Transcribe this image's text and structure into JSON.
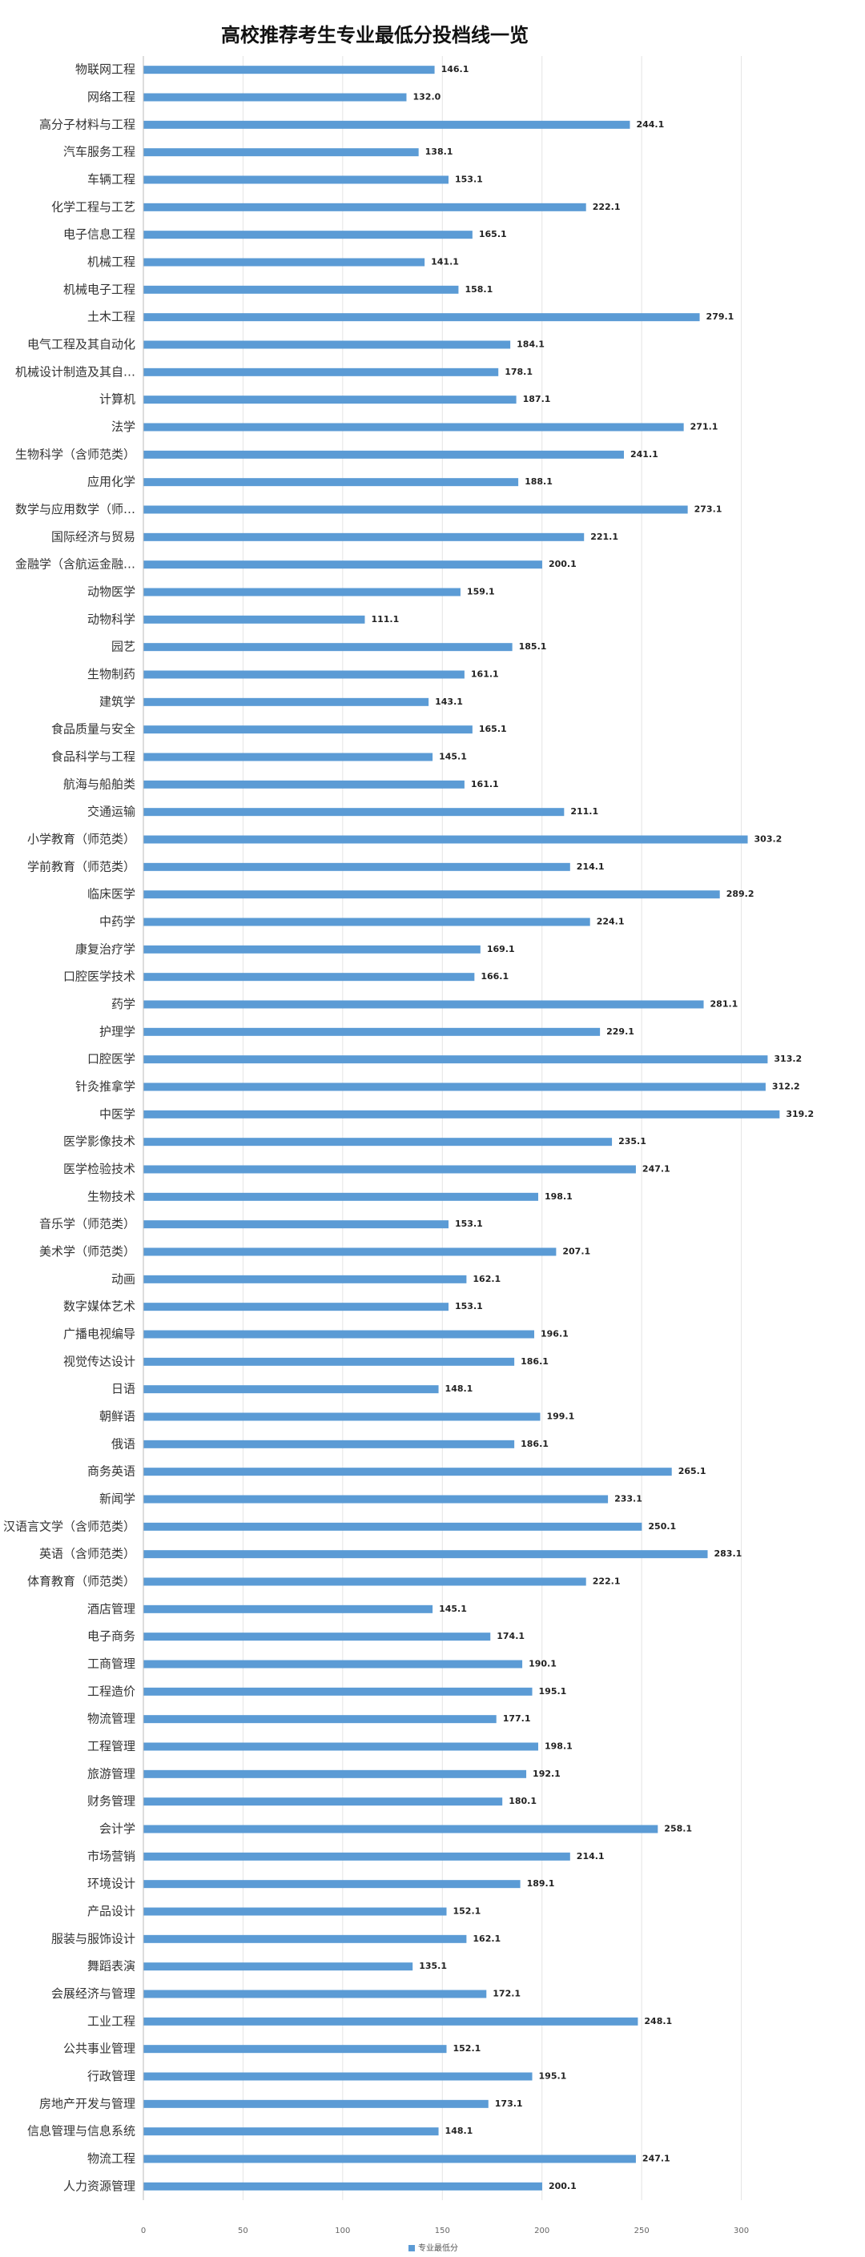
{
  "chart_data": {
    "type": "barh",
    "title": "高校推荐考生专业最低分投档线一览",
    "categories": [
      "物联网工程",
      "网络工程",
      "高分子材料与工程",
      "汽车服务工程",
      "车辆工程",
      "化学工程与工艺",
      "电子信息工程",
      "机械工程",
      "机械电子工程",
      "土木工程",
      "电气工程及其自动化",
      "机械设计制造及其自…",
      "计算机",
      "法学",
      "生物科学（含师范类）",
      "应用化学",
      "数学与应用数学（师…",
      "国际经济与贸易",
      "金融学（含航运金融…",
      "动物医学",
      "动物科学",
      "园艺",
      "生物制药",
      "建筑学",
      "食品质量与安全",
      "食品科学与工程",
      "航海与船舶类",
      "交通运输",
      "小学教育（师范类）",
      "学前教育（师范类）",
      "临床医学",
      "中药学",
      "康复治疗学",
      "口腔医学技术",
      "药学",
      "护理学",
      "口腔医学",
      "针灸推拿学",
      "中医学",
      "医学影像技术",
      "医学检验技术",
      "生物技术",
      "音乐学（师范类）",
      "美术学（师范类）",
      "动画",
      "数字媒体艺术",
      "广播电视编导",
      "视觉传达设计",
      "日语",
      "朝鲜语",
      "俄语",
      "商务英语",
      "新闻学",
      "汉语言文学（含师范类）",
      "英语（含师范类）",
      "体育教育（师范类）",
      "酒店管理",
      "电子商务",
      "工商管理",
      "工程造价",
      "物流管理",
      "工程管理",
      "旅游管理",
      "财务管理",
      "会计学",
      "市场营销",
      "环境设计",
      "产品设计",
      "服装与服饰设计",
      "舞蹈表演",
      "会展经济与管理",
      "工业工程",
      "公共事业管理",
      "行政管理",
      "房地产开发与管理",
      "信息管理与信息系统",
      "物流工程",
      "人力资源管理"
    ],
    "series": [
      {
        "name": "专业最低分",
        "color": "#5b9bd5",
        "values": [
          146.1,
          132.0,
          244.1,
          138.1,
          153.1,
          222.1,
          165.1,
          141.1,
          158.1,
          279.1,
          184.1,
          178.1,
          187.1,
          271.1,
          241.1,
          188.1,
          273.1,
          221.1,
          200.1,
          159.1,
          111.1,
          185.1,
          161.1,
          143.1,
          165.1,
          145.1,
          161.1,
          211.1,
          303.2,
          214.1,
          289.2,
          224.1,
          169.1,
          166.1,
          281.1,
          229.1,
          313.2,
          312.2,
          319.2,
          235.1,
          247.1,
          198.1,
          153.1,
          207.1,
          162.1,
          153.1,
          196.1,
          186.1,
          148.1,
          199.1,
          186.1,
          265.1,
          233.1,
          250.1,
          283.1,
          222.1,
          145.1,
          174.1,
          190.1,
          195.1,
          177.1,
          198.1,
          192.1,
          180.1,
          258.1,
          214.1,
          189.1,
          152.1,
          162.1,
          135.1,
          172.1,
          248.1,
          152.1,
          195.1,
          173.1,
          148.1,
          247.1,
          200.1
        ],
        "value_labels": [
          "146.1",
          "132.0",
          "244.1",
          "138.1",
          "153.1",
          "222.1",
          "165.1",
          "141.1",
          "158.1",
          "279.1",
          "184.1",
          "178.1",
          "187.1",
          "271.1",
          "241.1",
          "188.1",
          "273.1",
          "221.1",
          "200.1",
          "159.1",
          "111.1",
          "185.1",
          "161.1",
          "143.1",
          "165.1",
          "145.1",
          "161.1",
          "211.1",
          "303.2",
          "214.1",
          "289.2",
          "224.1",
          "169.1",
          "166.1",
          "281.1",
          "229.1",
          "313.2",
          "312.2",
          "319.2",
          "235.1",
          "247.1",
          "198.1",
          "153.1",
          "207.1",
          "162.1",
          "153.1",
          "196.1",
          "186.1",
          "148.1",
          "199.1",
          "186.1",
          "265.1",
          "233.1",
          "250.1",
          "283.1",
          "222.1",
          "145.1",
          "174.1",
          "190.1",
          "195.1",
          "177.1",
          "198.1",
          "192.1",
          "180.1",
          "258.1",
          "214.1",
          "189.1",
          "152.1",
          "162.1",
          "135.1",
          "172.1",
          "248.1",
          "152.1",
          "195.1",
          "173.1",
          "148.1",
          "247.1",
          "200.1"
        ]
      }
    ],
    "xlim": [
      0,
      350
    ],
    "xticks": [
      0,
      50,
      100,
      150,
      200,
      250,
      300
    ],
    "grid": true,
    "legend": "bottom"
  }
}
